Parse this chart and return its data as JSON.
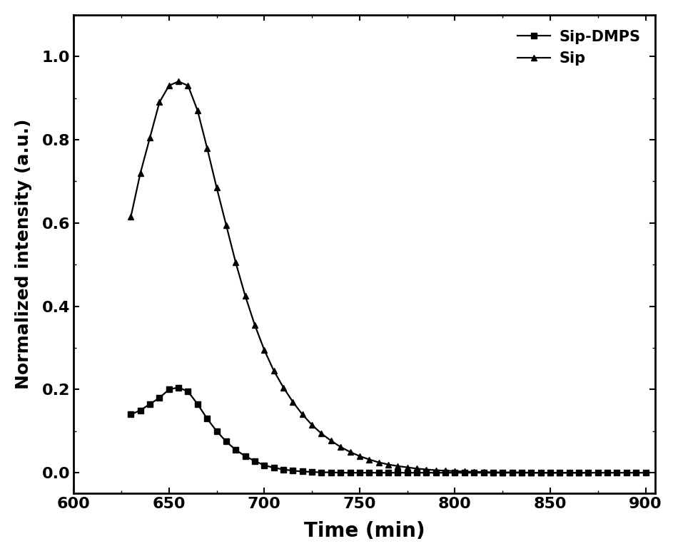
{
  "title": "",
  "xlabel": "Time (min)",
  "ylabel": "Normalized intensity (a.u.)",
  "xlim": [
    600,
    905
  ],
  "ylim": [
    -0.05,
    1.1
  ],
  "xticks": [
    600,
    650,
    700,
    750,
    800,
    850,
    900
  ],
  "yticks": [
    0.0,
    0.2,
    0.4,
    0.6,
    0.8,
    1.0
  ],
  "line_color": "#000000",
  "line_width": 1.6,
  "marker_size": 6,
  "legend_labels": [
    "Sip-DMPS",
    "Sip"
  ],
  "xlabel_fontsize": 20,
  "ylabel_fontsize": 18,
  "tick_fontsize": 16,
  "legend_fontsize": 15,
  "bg_color": "#ffffff",
  "sip_dmps_x": [
    630,
    635,
    640,
    645,
    650,
    655,
    660,
    665,
    670,
    675,
    680,
    685,
    690,
    695,
    700,
    705,
    710,
    715,
    720,
    725,
    730,
    735,
    740,
    745,
    750,
    755,
    760,
    765,
    770,
    775,
    780,
    785,
    790,
    795,
    800,
    805,
    810,
    815,
    820,
    825,
    830,
    835,
    840,
    845,
    850,
    855,
    860,
    865,
    870,
    875,
    880,
    885,
    890,
    895,
    900
  ],
  "sip_dmps_y": [
    0.14,
    0.15,
    0.165,
    0.18,
    0.2,
    0.205,
    0.195,
    0.165,
    0.13,
    0.1,
    0.075,
    0.055,
    0.04,
    0.028,
    0.018,
    0.012,
    0.008,
    0.005,
    0.003,
    0.002,
    0.001,
    0.001,
    0.0,
    0.0,
    0.0,
    0.0,
    0.0,
    0.0,
    0.0,
    0.0,
    0.0,
    0.0,
    0.0,
    0.0,
    0.0,
    0.0,
    0.0,
    0.0,
    0.0,
    0.0,
    0.0,
    0.0,
    0.0,
    0.0,
    0.0,
    0.0,
    0.0,
    0.0,
    0.0,
    0.0,
    0.0,
    0.0,
    0.0,
    0.0,
    0.0
  ],
  "sip_x": [
    630,
    635,
    640,
    645,
    650,
    655,
    660,
    665,
    670,
    675,
    680,
    685,
    690,
    695,
    700,
    705,
    710,
    715,
    720,
    725,
    730,
    735,
    740,
    745,
    750,
    755,
    760,
    765,
    770,
    775,
    780,
    785,
    790,
    795,
    800,
    805,
    810,
    815,
    820,
    825,
    830,
    835,
    840,
    845,
    850,
    855,
    860,
    865,
    870
  ],
  "sip_y": [
    0.615,
    0.72,
    0.805,
    0.89,
    0.93,
    0.94,
    0.93,
    0.87,
    0.78,
    0.685,
    0.595,
    0.505,
    0.425,
    0.355,
    0.295,
    0.245,
    0.205,
    0.17,
    0.14,
    0.115,
    0.094,
    0.077,
    0.062,
    0.05,
    0.04,
    0.032,
    0.025,
    0.02,
    0.016,
    0.013,
    0.01,
    0.008,
    0.006,
    0.005,
    0.004,
    0.003,
    0.002,
    0.002,
    0.001,
    0.001,
    0.001,
    0.001,
    0.0,
    0.0,
    0.0,
    0.0,
    0.0,
    0.0,
    0.0
  ]
}
